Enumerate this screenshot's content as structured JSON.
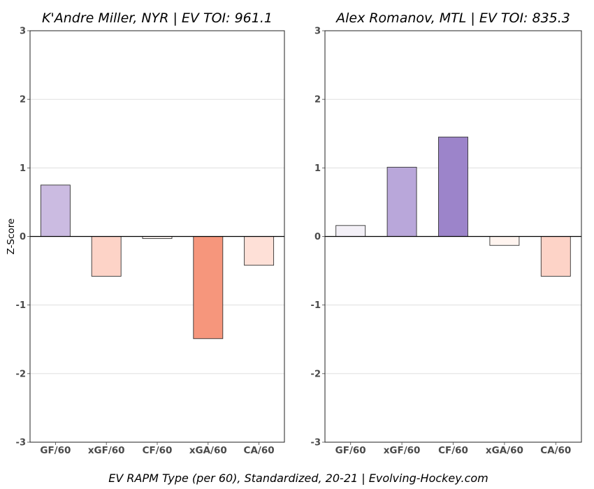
{
  "footer": "EV RAPM Type (per 60), Standardized, 20-21    |    Evolving-Hockey.com",
  "chart_data": [
    {
      "type": "bar",
      "title": "K'Andre Miller, NYR  |  EV TOI: 961.1",
      "categories": [
        "GF/60",
        "xGF/60",
        "CF/60",
        "xGA/60",
        "CA/60"
      ],
      "values": [
        0.75,
        -0.58,
        -0.03,
        -1.49,
        -0.42
      ],
      "colors": [
        "#cbbbe1",
        "#fdd3c7",
        "#fff8f5",
        "#f6967c",
        "#fee0d7"
      ],
      "ylabel": "Z-Score",
      "xlabel": "",
      "ylim": [
        -3,
        3
      ],
      "yticks": [
        -3,
        -2,
        -1,
        0,
        1,
        2,
        3
      ],
      "ytick_labels": [
        "-3",
        "-2",
        "-1",
        "0",
        "1",
        "2",
        "3"
      ],
      "grid": true
    },
    {
      "type": "bar",
      "title": "Alex Romanov, MTL  |  EV TOI: 835.3",
      "categories": [
        "GF/60",
        "xGF/60",
        "CF/60",
        "xGA/60",
        "CA/60"
      ],
      "values": [
        0.16,
        1.01,
        1.45,
        -0.13,
        -0.58
      ],
      "colors": [
        "#f3f0f7",
        "#b9a7da",
        "#9c84ca",
        "#fff4ef",
        "#fdd3c7"
      ],
      "ylabel": "",
      "xlabel": "",
      "ylim": [
        -3,
        3
      ],
      "yticks": [
        -3,
        -2,
        -1,
        0,
        1,
        2,
        3
      ],
      "ytick_labels": [
        "-3",
        "-2",
        "-1",
        "0",
        "1",
        "2",
        "3"
      ],
      "grid": true
    }
  ]
}
